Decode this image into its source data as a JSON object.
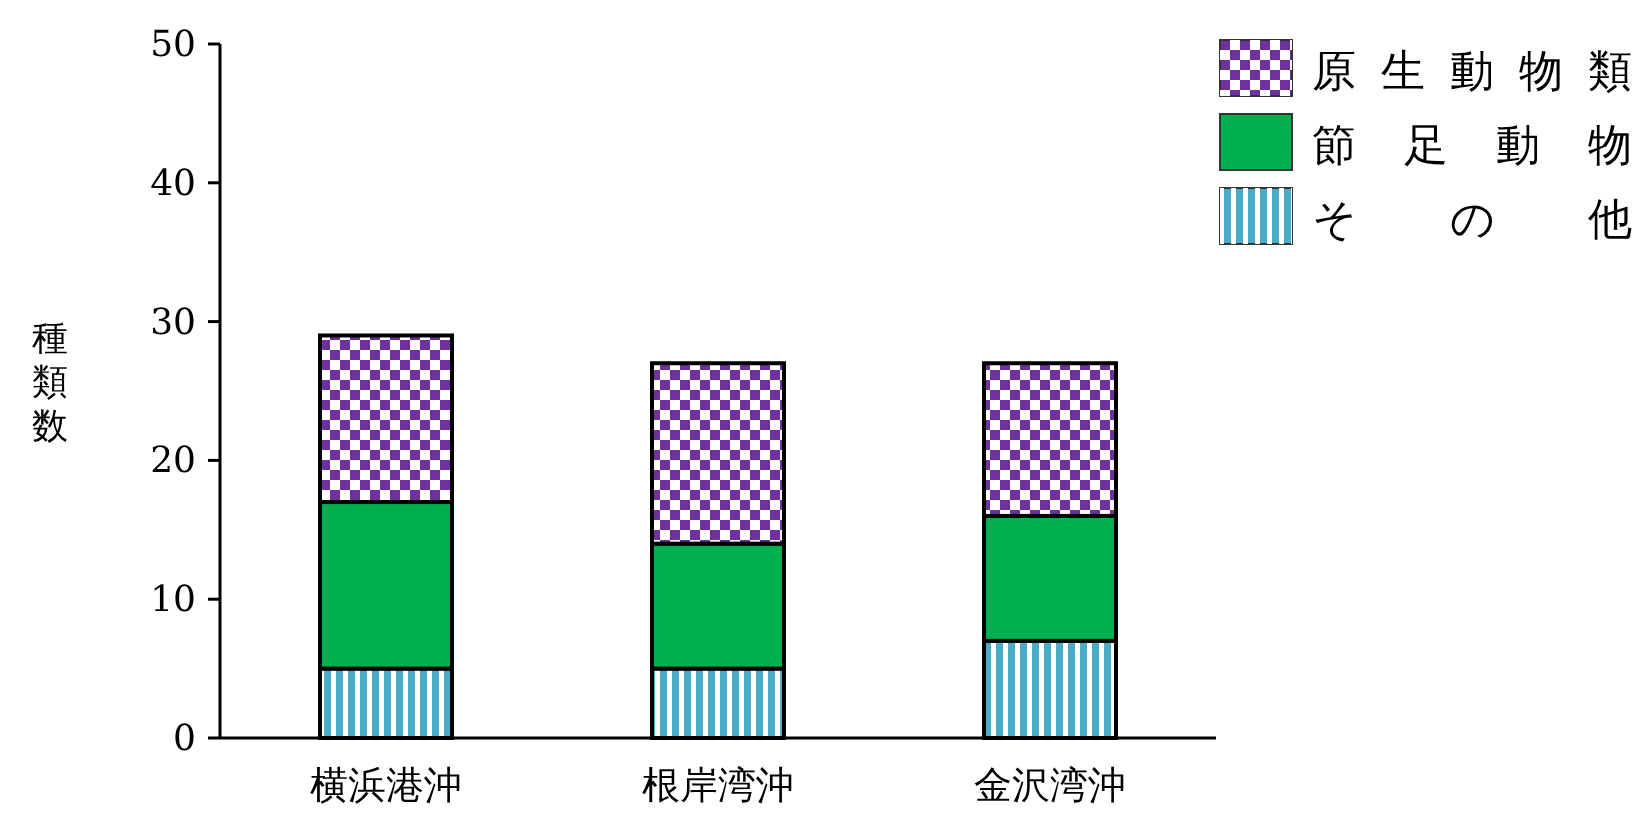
{
  "chart_data": {
    "type": "bar",
    "stacked": true,
    "ylabel": "種類数",
    "categories": [
      "横浜港沖",
      "根岸湾沖",
      "金沢湾沖"
    ],
    "series": [
      {
        "name": "その他",
        "color": "#4bacc6",
        "values": [
          5,
          5,
          7
        ]
      },
      {
        "name": "節足動物",
        "color": "#00b050",
        "values": [
          12,
          9,
          9
        ]
      },
      {
        "name": "原生動物類",
        "color": "#7030a0",
        "values": [
          12,
          13,
          11
        ]
      }
    ],
    "ylim": [
      0,
      50
    ],
    "yticks": [
      0,
      10,
      20,
      30,
      40,
      50
    ],
    "grid": false,
    "legend": "right"
  }
}
